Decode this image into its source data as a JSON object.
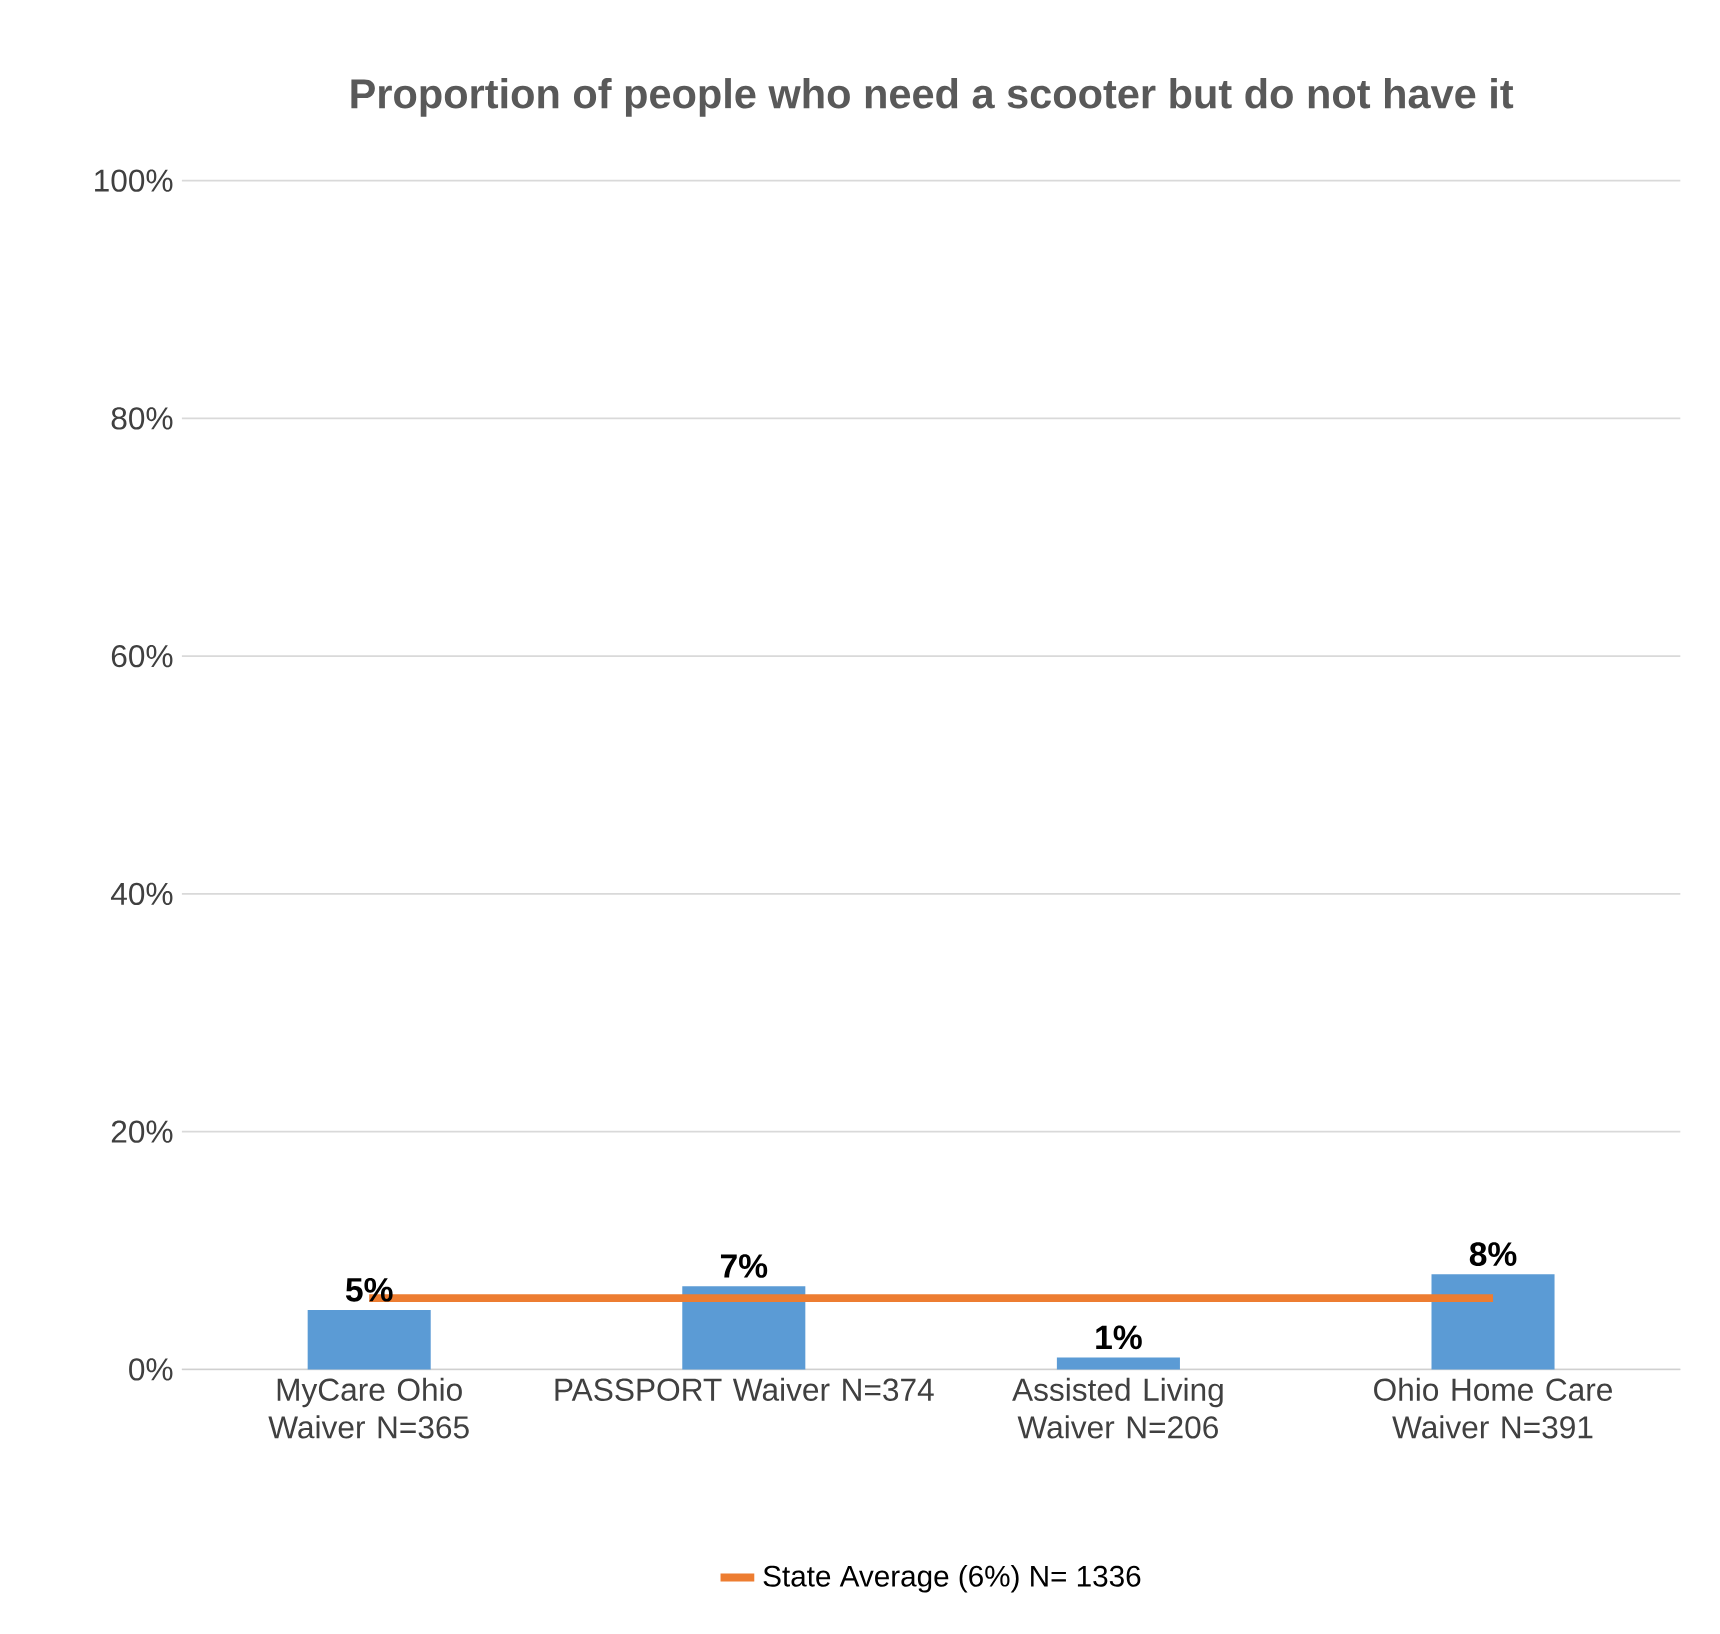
{
  "chart_data": {
    "type": "bar",
    "title": "Proportion of people who need a scooter but do not have it",
    "categories": [
      "MyCare Ohio Waiver N=365",
      "PASSPORT Waiver N=374",
      "Assisted Living Waiver N=206",
      "Ohio Home Care Waiver N=391"
    ],
    "series": [
      {
        "color": "#5b9bd5",
        "values": [
          5,
          7,
          1,
          8
        ],
        "value_labels": [
          "5%",
          "7%",
          "1%",
          "8%"
        ]
      },
      {
        "type": "line",
        "name": "State Average (6%) N= 1336",
        "color": "#ed7d31",
        "values": [
          6,
          6,
          6,
          6
        ]
      }
    ],
    "ylim": [
      0,
      100
    ],
    "yticks": [
      {
        "value": 0,
        "label": "0%"
      },
      {
        "value": 20,
        "label": "20%"
      },
      {
        "value": 40,
        "label": "40%"
      },
      {
        "value": 60,
        "label": "60%"
      },
      {
        "value": 80,
        "label": "80%"
      },
      {
        "value": 100,
        "label": "100%"
      }
    ],
    "grid": "y",
    "legend": "bottom",
    "marker": "none",
    "line_style": "solid"
  }
}
